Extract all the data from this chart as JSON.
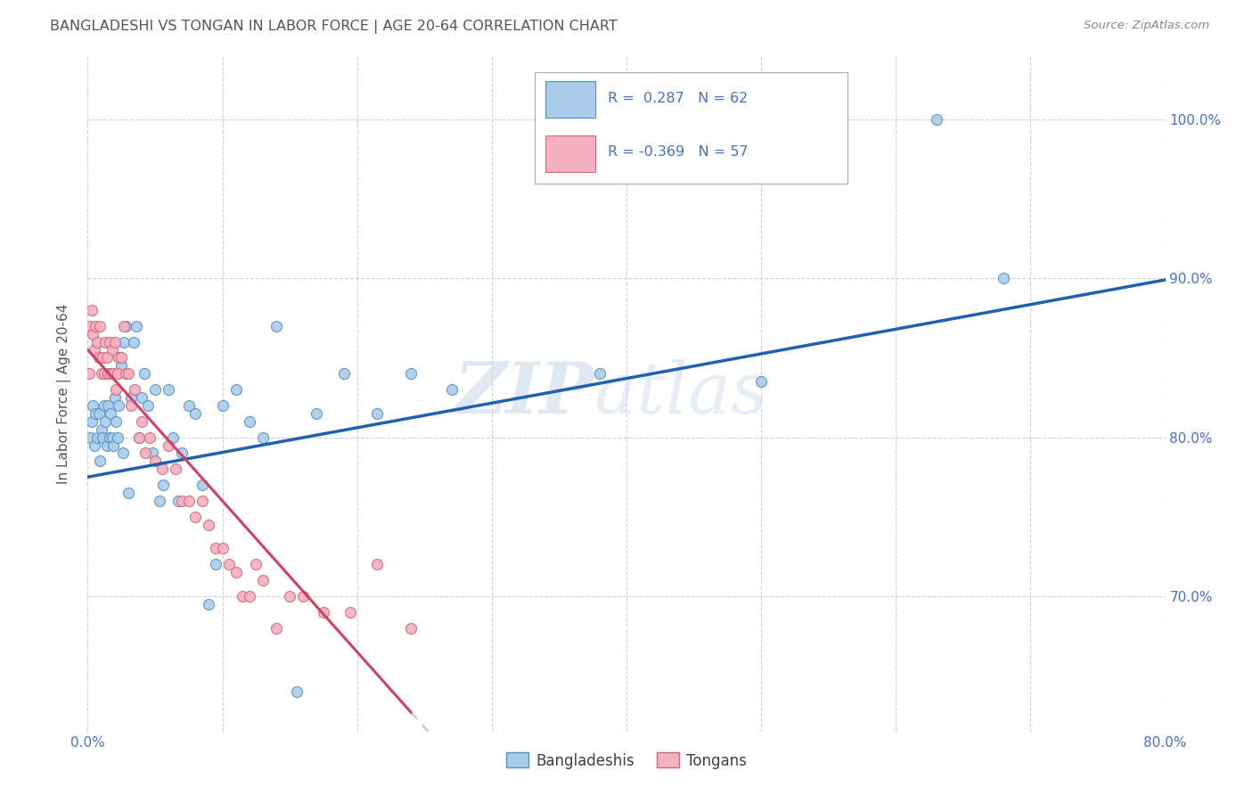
{
  "title": "BANGLADESHI VS TONGAN IN LABOR FORCE | AGE 20-64 CORRELATION CHART",
  "source": "Source: ZipAtlas.com",
  "ylabel": "In Labor Force | Age 20-64",
  "watermark": "ZIPatlas",
  "xlim": [
    0.0,
    0.8
  ],
  "ylim": [
    0.615,
    1.04
  ],
  "x_tick_positions": [
    0.0,
    0.1,
    0.2,
    0.3,
    0.4,
    0.5,
    0.6,
    0.7,
    0.8
  ],
  "x_tick_labels": [
    "0.0%",
    "",
    "",
    "",
    "",
    "",
    "",
    "",
    "80.0%"
  ],
  "y_tick_positions": [
    0.7,
    0.8,
    0.9,
    1.0
  ],
  "y_tick_labels": [
    "70.0%",
    "80.0%",
    "90.0%",
    "100.0%"
  ],
  "legend_bangladeshi_label": "Bangladeshis",
  "legend_tongan_label": "Tongans",
  "bangladeshi_color": "#aacce8",
  "bangladeshi_edge": "#5590c8",
  "tongan_color": "#f4b0c0",
  "tongan_edge": "#d06878",
  "trendline_b_color": "#2060b0",
  "trendline_t_solid_color": "#d04060",
  "trendline_t_dash_color": "#d8b8c0",
  "axis_label_color": "#4472c4",
  "title_color": "#555555",
  "background_color": "#ffffff",
  "grid_color": "#cccccc",
  "b_intercept": 0.775,
  "b_slope": 0.155,
  "t_intercept": 0.855,
  "t_slope": -0.95,
  "bangladeshi_x": [
    0.002,
    0.003,
    0.004,
    0.005,
    0.006,
    0.007,
    0.008,
    0.009,
    0.01,
    0.011,
    0.012,
    0.013,
    0.014,
    0.015,
    0.016,
    0.017,
    0.018,
    0.019,
    0.02,
    0.021,
    0.022,
    0.023,
    0.025,
    0.026,
    0.027,
    0.028,
    0.03,
    0.032,
    0.034,
    0.036,
    0.038,
    0.04,
    0.042,
    0.045,
    0.048,
    0.05,
    0.053,
    0.056,
    0.06,
    0.063,
    0.067,
    0.07,
    0.075,
    0.08,
    0.085,
    0.09,
    0.095,
    0.1,
    0.11,
    0.12,
    0.13,
    0.14,
    0.155,
    0.17,
    0.19,
    0.215,
    0.24,
    0.27,
    0.38,
    0.5,
    0.63,
    0.68
  ],
  "bangladeshi_y": [
    0.8,
    0.81,
    0.82,
    0.795,
    0.815,
    0.8,
    0.815,
    0.785,
    0.805,
    0.8,
    0.82,
    0.81,
    0.795,
    0.82,
    0.8,
    0.815,
    0.8,
    0.795,
    0.825,
    0.81,
    0.8,
    0.82,
    0.845,
    0.79,
    0.86,
    0.87,
    0.765,
    0.825,
    0.86,
    0.87,
    0.8,
    0.825,
    0.84,
    0.82,
    0.79,
    0.83,
    0.76,
    0.77,
    0.83,
    0.8,
    0.76,
    0.79,
    0.82,
    0.815,
    0.77,
    0.695,
    0.72,
    0.82,
    0.83,
    0.81,
    0.8,
    0.87,
    0.64,
    0.815,
    0.84,
    0.815,
    0.84,
    0.83,
    0.84,
    0.835,
    1.0,
    0.9
  ],
  "tongan_x": [
    0.001,
    0.002,
    0.003,
    0.004,
    0.005,
    0.006,
    0.007,
    0.008,
    0.009,
    0.01,
    0.011,
    0.012,
    0.013,
    0.014,
    0.015,
    0.016,
    0.017,
    0.018,
    0.019,
    0.02,
    0.021,
    0.022,
    0.023,
    0.025,
    0.027,
    0.028,
    0.03,
    0.032,
    0.035,
    0.038,
    0.04,
    0.043,
    0.046,
    0.05,
    0.055,
    0.06,
    0.065,
    0.07,
    0.075,
    0.08,
    0.085,
    0.09,
    0.095,
    0.1,
    0.105,
    0.11,
    0.115,
    0.12,
    0.125,
    0.13,
    0.14,
    0.15,
    0.16,
    0.175,
    0.195,
    0.215,
    0.24
  ],
  "tongan_y": [
    0.84,
    0.87,
    0.88,
    0.865,
    0.855,
    0.87,
    0.86,
    0.85,
    0.87,
    0.84,
    0.85,
    0.84,
    0.86,
    0.85,
    0.84,
    0.86,
    0.84,
    0.855,
    0.84,
    0.86,
    0.83,
    0.84,
    0.85,
    0.85,
    0.87,
    0.84,
    0.84,
    0.82,
    0.83,
    0.8,
    0.81,
    0.79,
    0.8,
    0.785,
    0.78,
    0.795,
    0.78,
    0.76,
    0.76,
    0.75,
    0.76,
    0.745,
    0.73,
    0.73,
    0.72,
    0.715,
    0.7,
    0.7,
    0.72,
    0.71,
    0.68,
    0.7,
    0.7,
    0.69,
    0.69,
    0.72,
    0.68
  ]
}
